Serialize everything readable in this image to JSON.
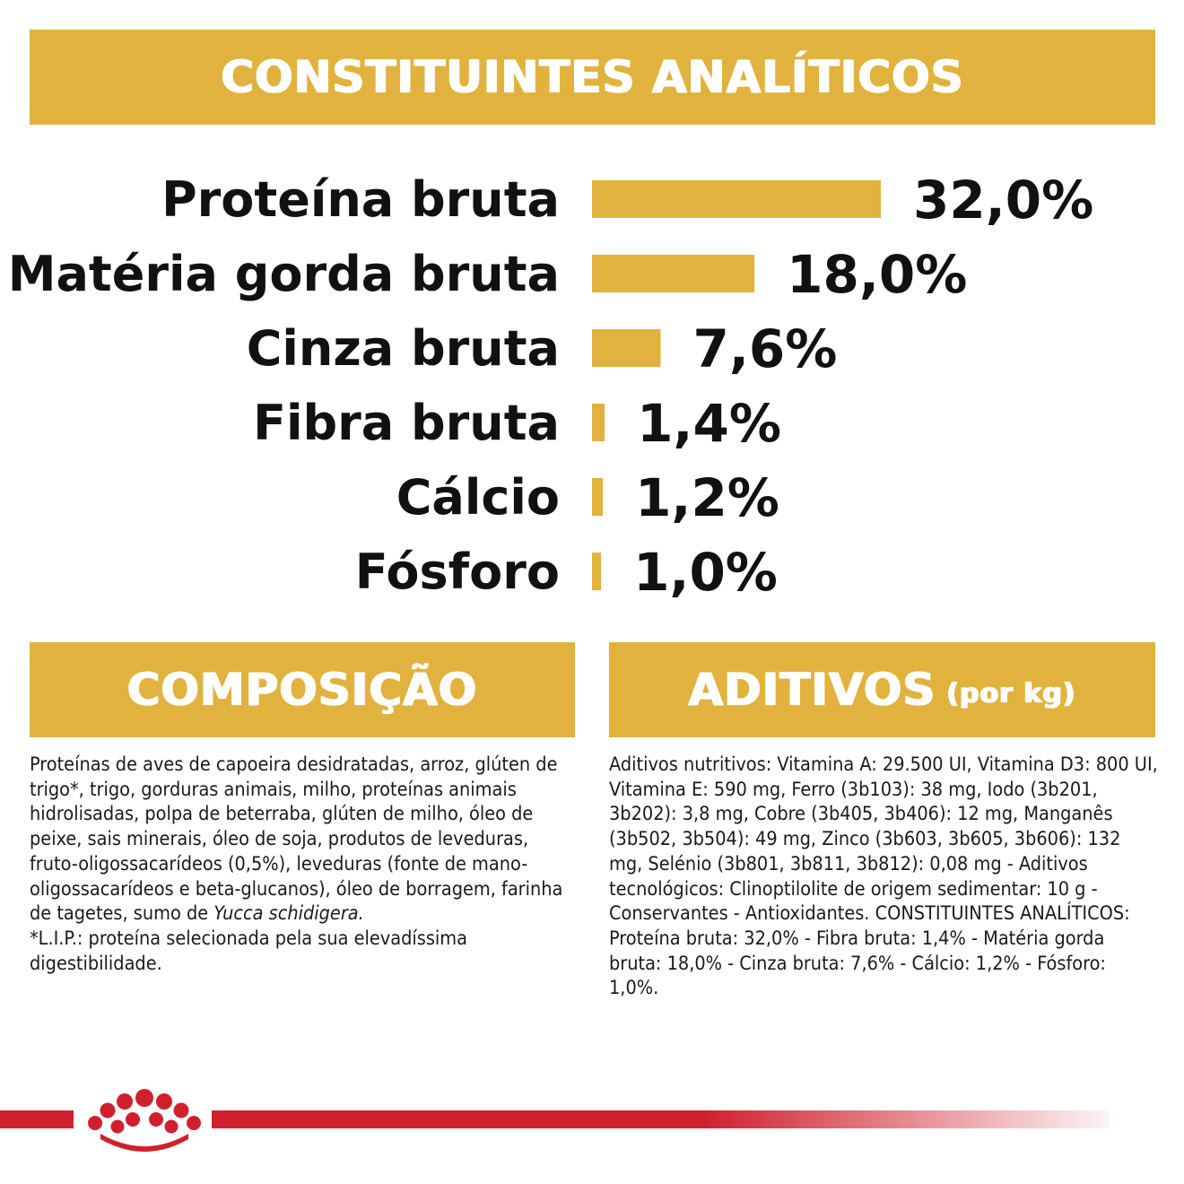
{
  "header": {
    "title": "CONSTITUINTES ANALÍTICOS"
  },
  "chart_data": {
    "type": "bar",
    "orientation": "horizontal",
    "categories": [
      "Proteína bruta",
      "Matéria gorda bruta",
      "Cinza bruta",
      "Fibra bruta",
      "Cálcio",
      "Fósforo"
    ],
    "values": [
      32.0,
      18.0,
      7.6,
      1.4,
      1.2,
      1.0
    ],
    "value_labels": [
      "32,0%",
      "18,0%",
      "7,6%",
      "1,4%",
      "1,2%",
      "1,0%"
    ],
    "unit": "%",
    "color": "#e1b23d",
    "grid": false,
    "legend": "none"
  },
  "composicao": {
    "title": "COMPOSIÇÃO",
    "text_before_italic": "Proteínas de aves de capoeira desidratadas, arroz, glúten de trigo*, trigo, gorduras animais, milho, proteínas animais hidrolisadas, polpa de beterraba, glúten de milho, óleo de peixe, sais minerais, óleo de soja, produtos de leveduras, fruto-oligossacarídeos (0,5%), leveduras (fonte de mano-oligossacarídeos e beta-glucanos), óleo de borragem, farinha de tagetes, sumo de ",
    "italic": "Yucca schidigera.",
    "text_after_italic": "*L.I.P.: proteína selecionada pela sua elevadíssima digestibilidade."
  },
  "aditivos": {
    "title": "ADITIVOS",
    "title_suffix": "(por kg)",
    "text": "Aditivos nutritivos: Vitamina A: 29.500 UI, Vitamina D3: 800 UI, Vitamina E: 590 mg, Ferro (3b103): 38 mg, Iodo (3b201, 3b202): 3,8 mg, Cobre (3b405, 3b406): 12 mg, Manganês (3b502, 3b504): 49 mg, Zinco (3b603, 3b605, 3b606): 132 mg, Selénio (3b801, 3b811, 3b812): 0,08 mg - Aditivos tecnológicos: Clinoptilolite de origem sedimentar: 10 g - Conservantes - Antioxidantes. CONSTITUINTES ANALÍTICOS: Proteína bruta: 32,0% - Fibra bruta: 1,4% - Matéria gorda bruta: 18,0% - Cinza bruta: 7,6% - Cálcio: 1,2% - Fósforo: 1,0%."
  },
  "colors": {
    "banner": "#e1b23d",
    "brand_red": "#d0202e"
  },
  "logo": {
    "icon": "royal-canin-crown-icon"
  }
}
